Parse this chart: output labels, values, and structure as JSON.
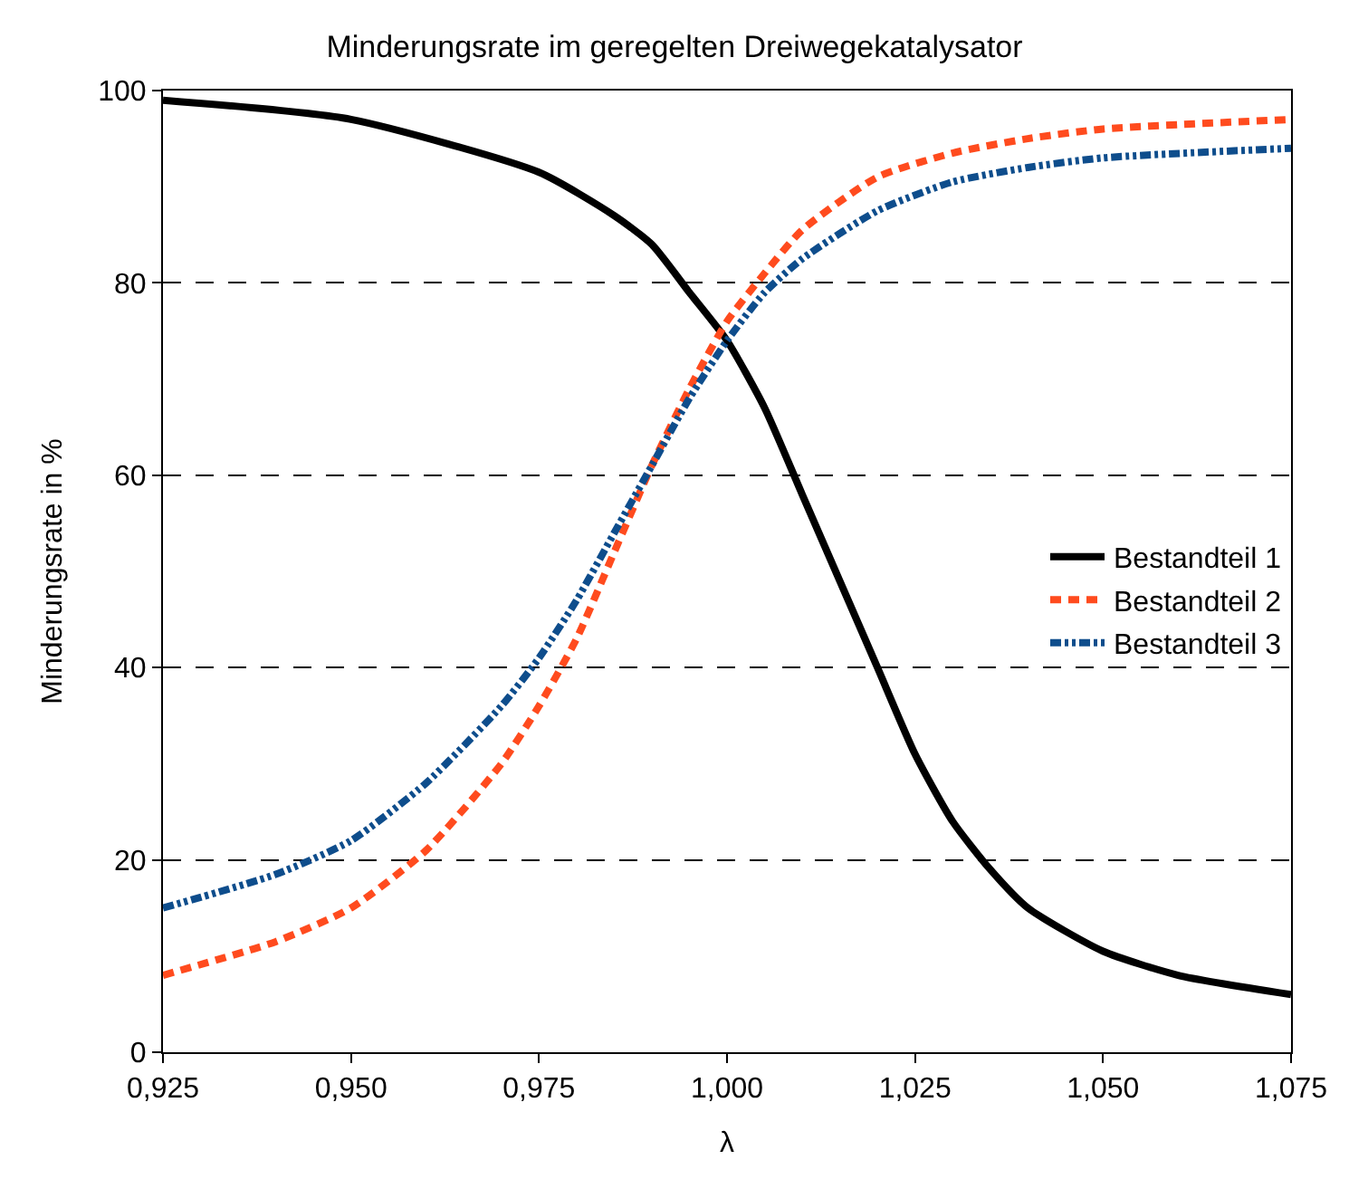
{
  "chart_data": {
    "type": "line",
    "title": "Minderungsrate im geregelten Dreiwegekatalysator",
    "xlabel": "λ",
    "ylabel": "Minderungsrate in %",
    "xlim": [
      0.925,
      1.075
    ],
    "xticks": [
      {
        "value": 0.925,
        "label": "0,925"
      },
      {
        "value": 0.95,
        "label": "0,950"
      },
      {
        "value": 0.975,
        "label": "0,975"
      },
      {
        "value": 1.0,
        "label": "1,000"
      },
      {
        "value": 1.025,
        "label": "1,025"
      },
      {
        "value": 1.05,
        "label": "1,050"
      },
      {
        "value": 1.075,
        "label": "1,075"
      }
    ],
    "ylim": [
      0,
      100
    ],
    "yticks": [
      0,
      20,
      40,
      60,
      80,
      100
    ],
    "grid": "y",
    "legend": "right",
    "marker": "none",
    "series": [
      {
        "name": "Bestandteil 1",
        "color": "#000000",
        "line_style": "solid",
        "x": [
          0.925,
          0.95,
          0.975,
          0.985,
          0.99,
          0.995,
          1.0,
          1.005,
          1.01,
          1.015,
          1.02,
          1.025,
          1.03,
          1.035,
          1.04,
          1.05,
          1.06,
          1.075
        ],
        "values": [
          99,
          97,
          91.5,
          87,
          84,
          79,
          74,
          67,
          58,
          49,
          40,
          31,
          24,
          19,
          15,
          10.5,
          8,
          6
        ]
      },
      {
        "name": "Bestandteil 2",
        "color": "#ff4b1e",
        "line_style": "dashed",
        "x": [
          0.925,
          0.94,
          0.95,
          0.96,
          0.97,
          0.975,
          0.98,
          0.985,
          0.99,
          0.995,
          1.0,
          1.005,
          1.01,
          1.02,
          1.03,
          1.04,
          1.05,
          1.075
        ],
        "values": [
          8,
          11.5,
          15,
          21,
          30,
          36,
          43,
          52,
          61,
          69,
          76,
          81,
          85.5,
          91,
          93.5,
          95,
          96,
          97
        ]
      },
      {
        "name": "Bestandteil 3",
        "color": "#0e4d8c",
        "line_style": "dotted",
        "x": [
          0.925,
          0.94,
          0.95,
          0.96,
          0.97,
          0.975,
          0.98,
          0.985,
          0.99,
          0.995,
          1.0,
          1.005,
          1.01,
          1.02,
          1.03,
          1.04,
          1.05,
          1.075
        ],
        "values": [
          15,
          18.5,
          22,
          28,
          36,
          41,
          47,
          54,
          61,
          68,
          74,
          79,
          82.5,
          87.5,
          90.5,
          92,
          93,
          94
        ]
      }
    ]
  }
}
